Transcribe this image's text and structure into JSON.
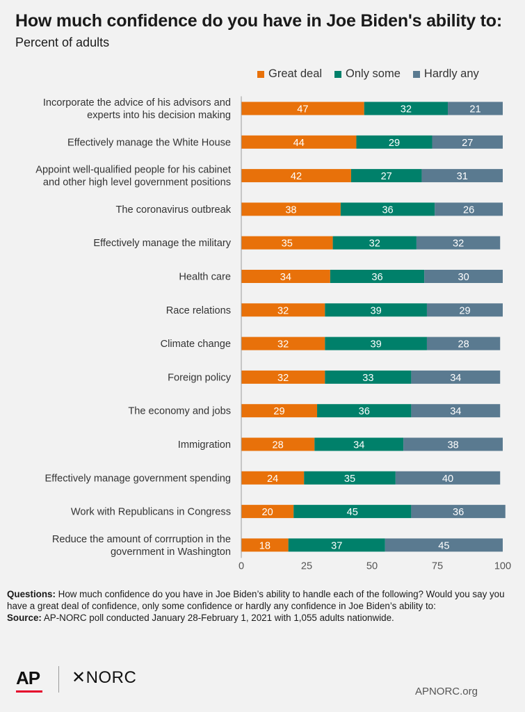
{
  "header": {
    "title": "How much confidence do you have in Joe Biden's ability to:",
    "subtitle": "Percent of adults"
  },
  "chart_data": {
    "type": "bar",
    "orientation": "horizontal",
    "stacked": true,
    "categories": [
      "Incorporate the advice of his advisors and experts into his decision making",
      "Effectively manage the White House",
      "Appoint well-qualified people for his cabinet and other high level government positions",
      "The coronavirus outbreak",
      "Effectively manage the military",
      "Health care",
      "Race relations",
      "Climate change",
      "Foreign policy",
      "The economy and jobs",
      "Immigration",
      "Effectively manage government spending",
      "Work with Republicans in Congress",
      "Reduce the amount of corrruption in the government in Washington"
    ],
    "category_lines": [
      [
        "Incorporate the advice of his advisors and",
        "experts into his decision making"
      ],
      [
        "Effectively manage the White House"
      ],
      [
        "Appoint well-qualified people for his cabinet",
        "and other high level government positions"
      ],
      [
        "The coronavirus outbreak"
      ],
      [
        "Effectively manage the military"
      ],
      [
        "Health care"
      ],
      [
        "Race relations"
      ],
      [
        "Climate change"
      ],
      [
        "Foreign policy"
      ],
      [
        "The economy and jobs"
      ],
      [
        "Immigration"
      ],
      [
        "Effectively manage government spending"
      ],
      [
        "Work with Republicans in Congress"
      ],
      [
        "Reduce the amount of corrruption in the",
        "government in Washington"
      ]
    ],
    "series": [
      {
        "name": "Great deal",
        "color": "#e8710a",
        "values": [
          47,
          44,
          42,
          38,
          35,
          34,
          32,
          32,
          32,
          29,
          28,
          24,
          20,
          18
        ]
      },
      {
        "name": "Only some",
        "color": "#00806a",
        "values": [
          32,
          29,
          27,
          36,
          32,
          36,
          39,
          39,
          33,
          36,
          34,
          35,
          45,
          37
        ]
      },
      {
        "name": "Hardly any",
        "color": "#5a7a90",
        "values": [
          21,
          27,
          31,
          26,
          32,
          30,
          29,
          28,
          34,
          34,
          38,
          40,
          36,
          45
        ]
      }
    ],
    "xlim": [
      0,
      100
    ],
    "xticks": [
      0,
      25,
      50,
      75,
      100
    ],
    "legend_position": "top",
    "grid": false
  },
  "notes": {
    "questions_label": "Questions:",
    "questions_text": " How much confidence do you have in Joe Biden’s ability to handle each of the following? Would you say you have a great deal of confidence, only some confidence or hardly any confidence in Joe Biden’s ability to:",
    "source_label": "Source:",
    "source_text": " AP-NORC poll conducted January 28-February 1, 2021 with 1,055 adults nationwide."
  },
  "footer": {
    "logo_ap": "AP",
    "logo_norc": "✕NORC",
    "site": "APNORC.org"
  }
}
